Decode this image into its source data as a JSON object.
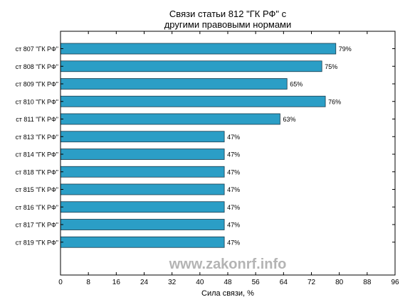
{
  "chart_data": {
    "type": "bar",
    "orientation": "horizontal",
    "title_line1": "Связи статьи 812 \"ГК РФ\" с",
    "title_line2": "другими правовыми нормами",
    "xlabel": "Сила связи, %",
    "ylabel": "",
    "xlim": [
      0,
      96
    ],
    "xticks": [
      0,
      8,
      16,
      24,
      32,
      40,
      48,
      56,
      64,
      72,
      80,
      88,
      96
    ],
    "grid": false,
    "bar_color": "#2b9ec6",
    "bar_edge_color": "#1a3a4a",
    "categories": [
      "ст 807 \"ГК РФ\"",
      "ст 808 \"ГК РФ\"",
      "ст 809 \"ГК РФ\"",
      "ст 810 \"ГК РФ\"",
      "ст 811 \"ГК РФ\"",
      "ст 813 \"ГК РФ\"",
      "ст 814 \"ГК РФ\"",
      "ст 818 \"ГК РФ\"",
      "ст 815 \"ГК РФ\"",
      "ст 816 \"ГК РФ\"",
      "ст 817 \"ГК РФ\"",
      "ст 819 \"ГК РФ\""
    ],
    "values": [
      79,
      75,
      65,
      76,
      63,
      47,
      47,
      47,
      47,
      47,
      47,
      47
    ],
    "value_labels": [
      "79%",
      "75%",
      "65%",
      "76%",
      "63%",
      "47%",
      "47%",
      "47%",
      "47%",
      "47%",
      "47%",
      "47%"
    ]
  },
  "watermark": "www.zakonrf.info"
}
